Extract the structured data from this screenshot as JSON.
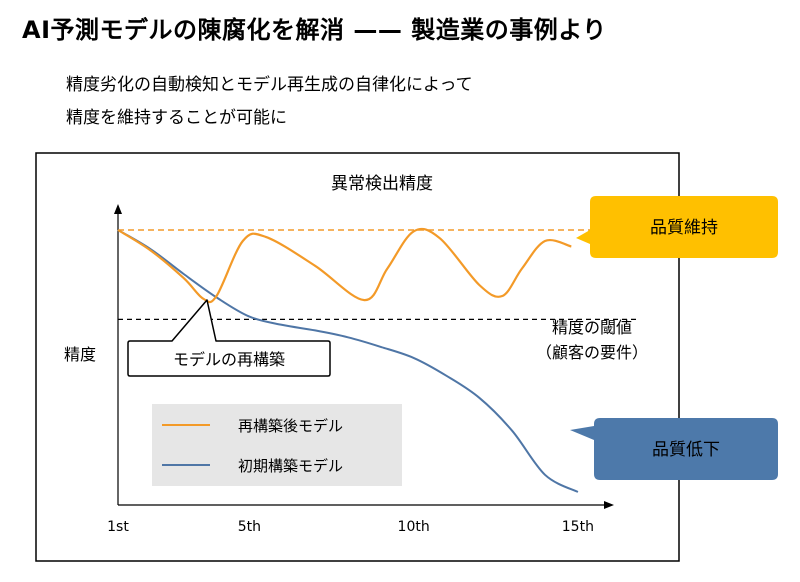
{
  "header": {
    "title": "AI予測モデルの陳腐化を解消 —— 製造業の事例より",
    "subtitle_lines": [
      "精度劣化の自動検知とモデル再生成の自律化によって",
      "精度を維持することが可能に"
    ]
  },
  "colors": {
    "rebuilt": "#F39A28",
    "initial": "#4F76A6",
    "callout_good": "#FFC000",
    "callout_bad": "#4D79AA",
    "legend_bg": "#E6E6E6"
  },
  "chart_data": {
    "type": "line",
    "title": "異常検出精度",
    "ylabel": "精度",
    "xlabel": "",
    "x_ticks": [
      {
        "x": 1,
        "label": "1st"
      },
      {
        "x": 5,
        "label": "5th"
      },
      {
        "x": 10,
        "label": "10th"
      },
      {
        "x": 15,
        "label": "15th"
      }
    ],
    "xlim": [
      1,
      16.1
    ],
    "ylim": [
      0,
      1
    ],
    "series": [
      {
        "name": "再構築後モデル",
        "color": "#F39A28",
        "points": [
          [
            1,
            1.0
          ],
          [
            2,
            0.925
          ],
          [
            3,
            0.825
          ],
          [
            3.6,
            0.75
          ],
          [
            4,
            0.76
          ],
          [
            4.8,
            0.96
          ],
          [
            5.5,
            0.975
          ],
          [
            7,
            0.87
          ],
          [
            8.5,
            0.745
          ],
          [
            9.2,
            0.86
          ],
          [
            10,
            0.995
          ],
          [
            10.8,
            0.97
          ],
          [
            12,
            0.8
          ],
          [
            12.7,
            0.76
          ],
          [
            13.3,
            0.86
          ],
          [
            14,
            0.96
          ],
          [
            14.8,
            0.94
          ]
        ]
      },
      {
        "name": "初期構築モデル",
        "color": "#4F76A6",
        "points": [
          [
            1,
            1.0
          ],
          [
            2,
            0.93
          ],
          [
            3,
            0.84
          ],
          [
            4,
            0.755
          ],
          [
            5,
            0.685
          ],
          [
            6,
            0.655
          ],
          [
            7,
            0.635
          ],
          [
            8,
            0.61
          ],
          [
            9,
            0.575
          ],
          [
            10,
            0.535
          ],
          [
            11,
            0.47
          ],
          [
            12,
            0.39
          ],
          [
            13,
            0.27
          ],
          [
            14,
            0.11
          ],
          [
            15,
            -0.08
          ]
        ]
      }
    ],
    "reference_lines": [
      {
        "y": 1.0,
        "color": "#F39A28",
        "style": "dashed"
      },
      {
        "y": 0.675,
        "color": "#000000",
        "style": "dashed",
        "label_lines": [
          "精度の閾値",
          "（顧客の要件）"
        ]
      }
    ],
    "annotations": {
      "rebuild": "モデルの再構築",
      "good": "品質維持",
      "bad": "品質低下"
    },
    "legend": {
      "placement": "bottom-left",
      "entries": [
        "再構築後モデル",
        "初期構築モデル"
      ]
    }
  }
}
